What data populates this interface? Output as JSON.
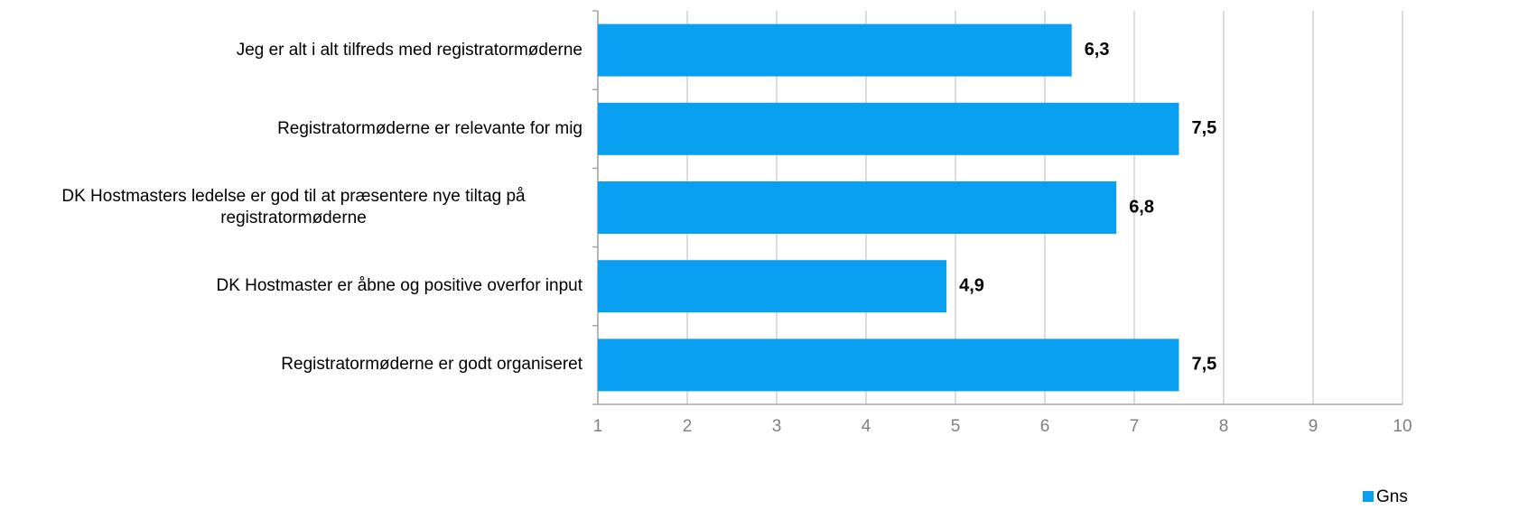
{
  "chart_data": {
    "type": "bar",
    "orientation": "horizontal",
    "categories": [
      "Jeg er alt i alt tilfreds med registratormøderne",
      "Registratormøderne er relevante for mig",
      "DK Hostmasters ledelse er god til at præsentere nye tiltag på registratormøderne",
      "DK Hostmaster er åbne og positive overfor input",
      "Registratormøderne er godt organiseret"
    ],
    "series": [
      {
        "name": "Gns",
        "color": "#0aa0f2",
        "values": [
          6.3,
          7.5,
          6.8,
          4.9,
          7.5
        ],
        "value_labels": [
          "6,3",
          "7,5",
          "6,8",
          "4,9",
          "7,5"
        ]
      }
    ],
    "xlim": [
      1,
      10
    ],
    "xticks": [
      1,
      2,
      3,
      4,
      5,
      6,
      7,
      8,
      9,
      10
    ],
    "grid": true,
    "legend": "bottom-right"
  }
}
